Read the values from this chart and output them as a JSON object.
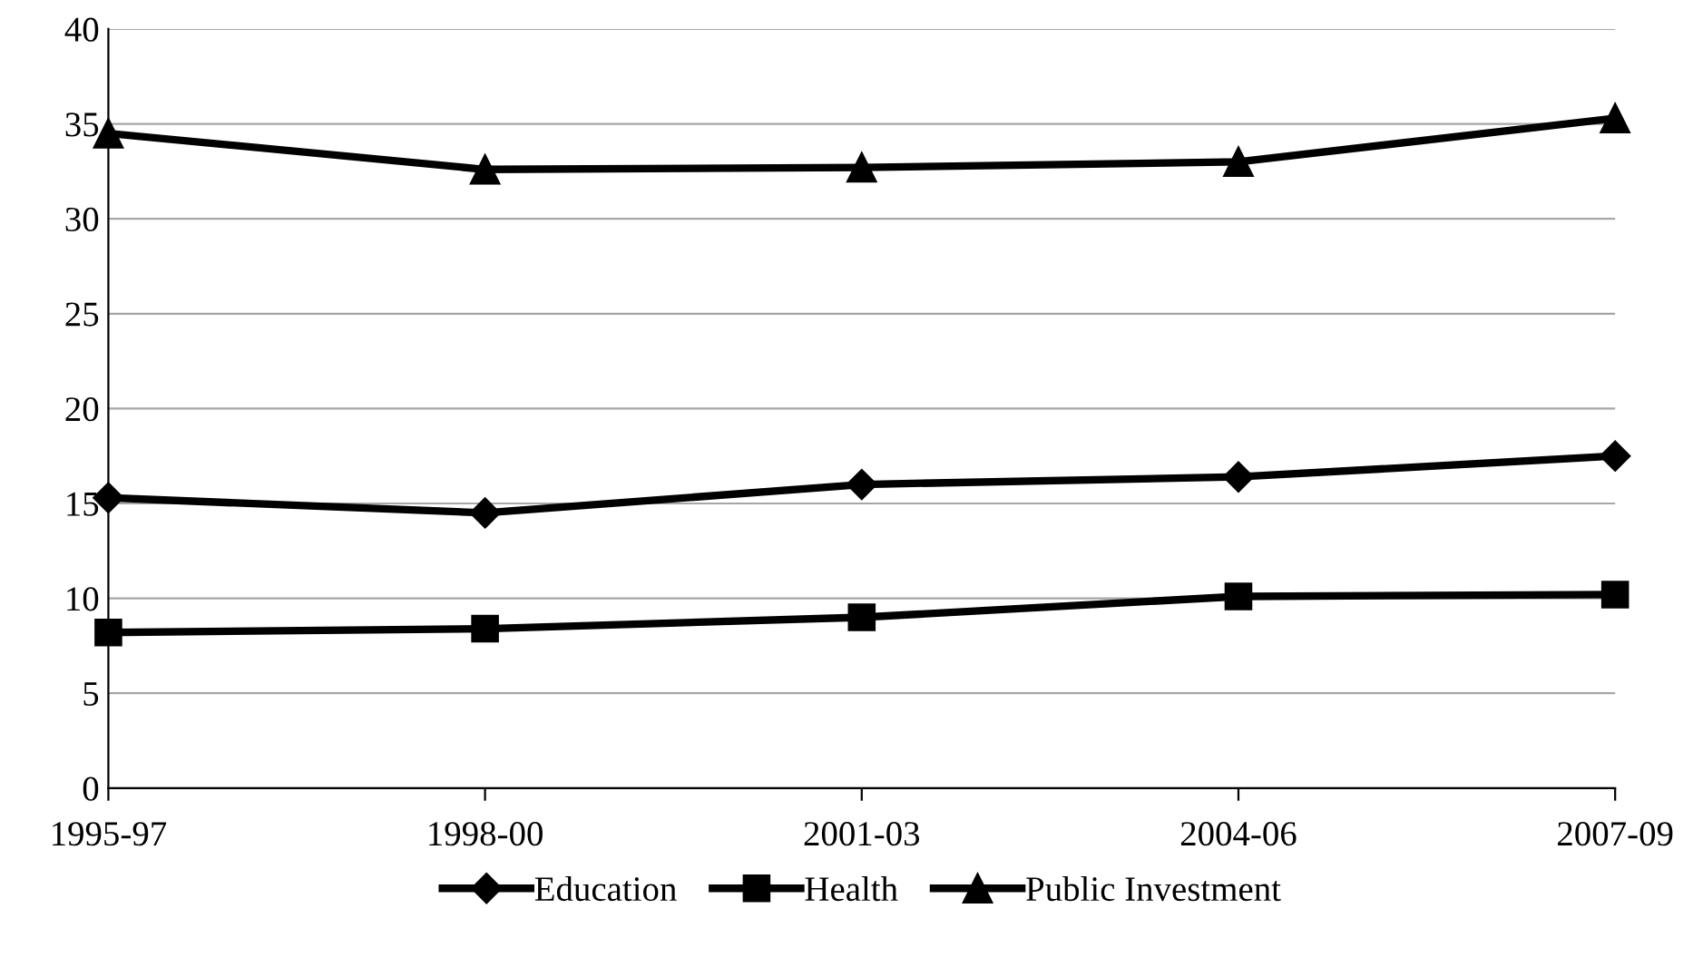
{
  "chart_data": {
    "type": "line",
    "categories": [
      "1995-97",
      "1998-00",
      "2001-03",
      "2004-06",
      "2007-09"
    ],
    "series": [
      {
        "name": "Education",
        "color": "#000000",
        "marker": "diamond",
        "values": [
          15.3,
          14.5,
          16.0,
          16.4,
          17.5
        ]
      },
      {
        "name": "Health",
        "color": "#000000",
        "marker": "square",
        "values": [
          8.2,
          8.4,
          9.0,
          10.1,
          10.2
        ]
      },
      {
        "name": "Public Investment",
        "color": "#000000",
        "marker": "triangle",
        "values": [
          34.5,
          32.6,
          32.7,
          33.0,
          35.3
        ]
      }
    ],
    "ylim": [
      0,
      40
    ],
    "yticks": [
      0,
      5,
      10,
      15,
      20,
      25,
      30,
      35,
      40
    ],
    "grid": "y",
    "legend": "bottom",
    "line_style": "solid"
  }
}
